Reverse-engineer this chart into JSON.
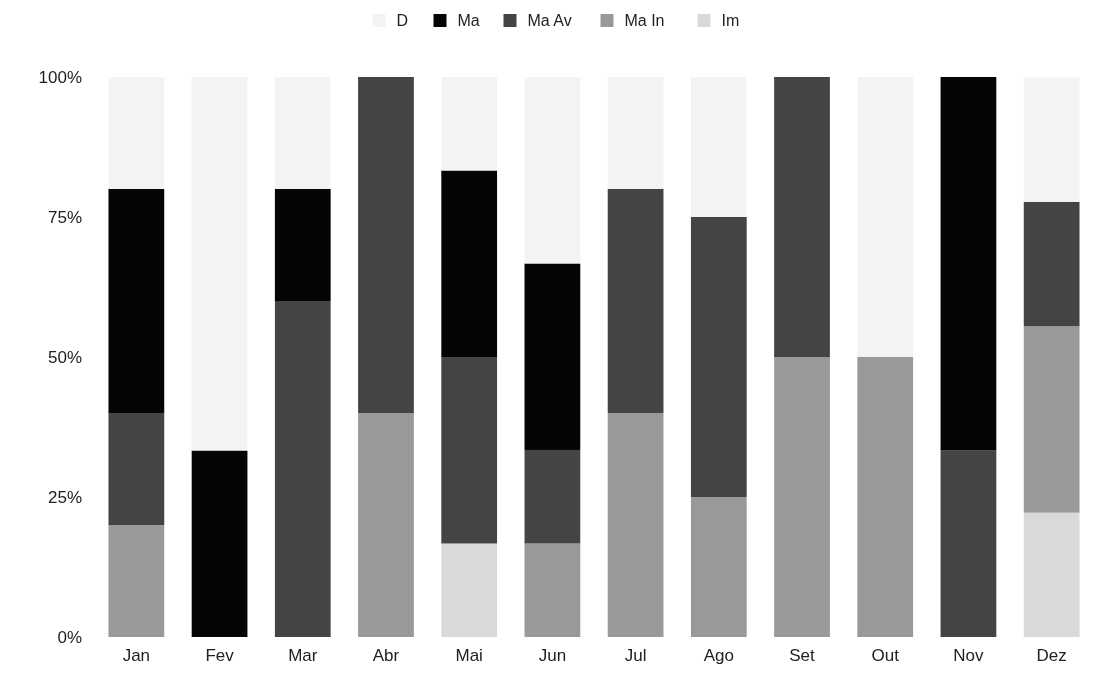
{
  "chart_data": {
    "type": "bar",
    "stacked": true,
    "categories": [
      "Jan",
      "Fev",
      "Mar",
      "Abr",
      "Mai",
      "Jun",
      "Jul",
      "Ago",
      "Set",
      "Out",
      "Nov",
      "Dez"
    ],
    "series": [
      {
        "name": "Im",
        "color": "#d9d9d9",
        "values": [
          0,
          0,
          0,
          0,
          16.7,
          0,
          0,
          0,
          0,
          0,
          0,
          22.2
        ]
      },
      {
        "name": "Ma In",
        "color": "#999999",
        "values": [
          20,
          0,
          0,
          40,
          0,
          16.7,
          40,
          25,
          50,
          50,
          0,
          33.3
        ]
      },
      {
        "name": "Ma Av",
        "color": "#444444",
        "values": [
          20,
          0,
          60,
          60,
          33.3,
          16.7,
          40,
          50,
          50,
          0,
          33.3,
          22.2
        ]
      },
      {
        "name": "Ma",
        "color": "#050505",
        "values": [
          40,
          33.3,
          20,
          0,
          33.3,
          33.3,
          0,
          0,
          0,
          0,
          66.7,
          0
        ]
      },
      {
        "name": "D",
        "color": "#f3f3f3",
        "values": [
          20,
          66.7,
          20,
          0,
          16.7,
          33.3,
          20,
          25,
          0,
          50,
          0,
          22.2
        ]
      }
    ],
    "ylim": [
      0,
      100
    ],
    "yticks": [
      {
        "value": 0,
        "label": "0%"
      },
      {
        "value": 25,
        "label": "25%"
      },
      {
        "value": 50,
        "label": "50%"
      },
      {
        "value": 75,
        "label": "75%"
      },
      {
        "value": 100,
        "label": "100%"
      }
    ],
    "legend": "top"
  }
}
